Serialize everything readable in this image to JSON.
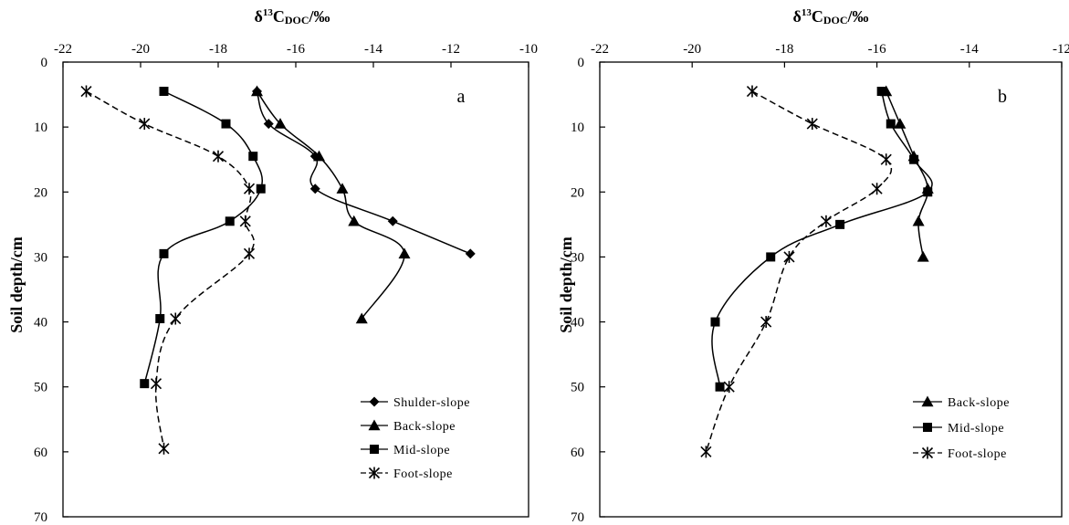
{
  "chart_data": [
    {
      "type": "line",
      "panel_label": "a",
      "xlabel": "δ13CDOC/‰",
      "ylabel": "Soil depth/cm",
      "xlim": [
        -22,
        -10
      ],
      "ylim": [
        0,
        70
      ],
      "x_ticks": [
        -22,
        -20,
        -18,
        -16,
        -14,
        -12,
        -10
      ],
      "y_ticks": [
        0,
        10,
        20,
        30,
        40,
        50,
        60,
        70
      ],
      "x_axis_position": "top",
      "y_inverted": true,
      "grid": false,
      "legend_position": "bottom-right",
      "series": [
        {
          "name": "Shulder-slope",
          "marker": "diamond",
          "color": "#000000",
          "points": [
            [
              -17.0,
              4.5
            ],
            [
              -16.7,
              9.5
            ],
            [
              -15.5,
              14.5
            ],
            [
              -15.5,
              19.5
            ],
            [
              -13.5,
              24.5
            ],
            [
              -11.5,
              29.5
            ]
          ]
        },
        {
          "name": "Back-slope",
          "marker": "triangle",
          "color": "#000000",
          "points": [
            [
              -17.0,
              4.5
            ],
            [
              -16.4,
              9.5
            ],
            [
              -15.4,
              14.5
            ],
            [
              -14.8,
              19.5
            ],
            [
              -14.5,
              24.5
            ],
            [
              -13.2,
              29.5
            ],
            [
              -14.3,
              39.5
            ]
          ]
        },
        {
          "name": "Mid-slope",
          "marker": "square",
          "color": "#000000",
          "points": [
            [
              -19.4,
              4.5
            ],
            [
              -17.8,
              9.5
            ],
            [
              -17.1,
              14.5
            ],
            [
              -16.9,
              19.5
            ],
            [
              -17.7,
              24.5
            ],
            [
              -19.4,
              29.5
            ],
            [
              -19.5,
              39.5
            ],
            [
              -19.9,
              49.5
            ]
          ]
        },
        {
          "name": "Foot-slope",
          "marker": "asterisk",
          "color": "#000000",
          "points": [
            [
              -21.4,
              4.5
            ],
            [
              -19.9,
              9.5
            ],
            [
              -18.0,
              14.5
            ],
            [
              -17.2,
              19.5
            ],
            [
              -17.3,
              24.5
            ],
            [
              -17.2,
              29.5
            ],
            [
              -19.1,
              39.5
            ],
            [
              -19.6,
              49.5
            ],
            [
              -19.4,
              59.5
            ]
          ]
        }
      ]
    },
    {
      "type": "line",
      "panel_label": "b",
      "xlabel": "δ13CDOC/‰",
      "ylabel": "Soil depth/cm",
      "xlim": [
        -22,
        -12
      ],
      "ylim": [
        0,
        70
      ],
      "x_ticks": [
        -22,
        -20,
        -18,
        -16,
        -14,
        -12
      ],
      "y_ticks": [
        0,
        10,
        20,
        30,
        40,
        50,
        60,
        70
      ],
      "x_axis_position": "top",
      "y_inverted": true,
      "grid": false,
      "legend_position": "bottom-right",
      "series": [
        {
          "name": "Back-slope",
          "marker": "triangle",
          "color": "#000000",
          "points": [
            [
              -15.8,
              4.5
            ],
            [
              -15.5,
              9.5
            ],
            [
              -15.2,
              14.5
            ],
            [
              -14.9,
              19.5
            ],
            [
              -15.1,
              24.5
            ],
            [
              -15.0,
              30.0
            ]
          ]
        },
        {
          "name": "Mid-slope",
          "marker": "square",
          "color": "#000000",
          "points": [
            [
              -15.9,
              4.5
            ],
            [
              -15.7,
              9.5
            ],
            [
              -15.2,
              15.0
            ],
            [
              -14.9,
              20.0
            ],
            [
              -16.8,
              25.0
            ],
            [
              -18.3,
              30.0
            ],
            [
              -19.5,
              40.0
            ],
            [
              -19.4,
              50.0
            ]
          ]
        },
        {
          "name": "Foot-slope",
          "marker": "asterisk",
          "color": "#000000",
          "points": [
            [
              -18.7,
              4.5
            ],
            [
              -17.4,
              9.5
            ],
            [
              -15.8,
              15.0
            ],
            [
              -16.0,
              19.5
            ],
            [
              -17.1,
              24.5
            ],
            [
              -17.9,
              30.0
            ],
            [
              -18.4,
              40.0
            ],
            [
              -19.2,
              50.0
            ],
            [
              -19.7,
              60.0
            ]
          ]
        }
      ]
    }
  ]
}
